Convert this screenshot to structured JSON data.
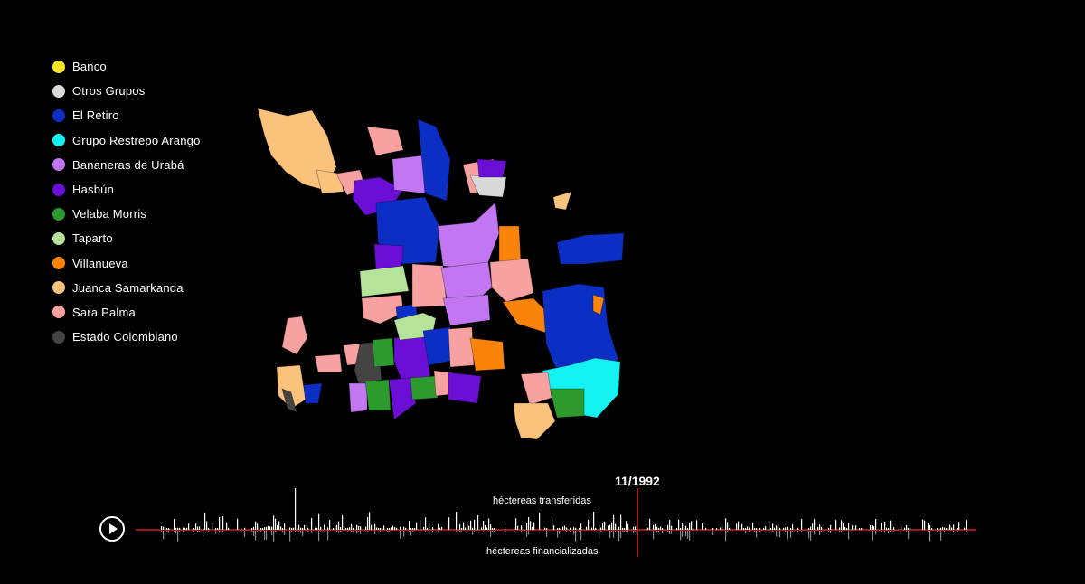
{
  "legend": [
    {
      "label": "Banco",
      "color": "#f7e627"
    },
    {
      "label": "Otros Grupos",
      "color": "#d9d9d9"
    },
    {
      "label": "El Retiro",
      "color": "#0b2fc4"
    },
    {
      "label": "Grupo Restrepo Arango",
      "color": "#14f1f1"
    },
    {
      "label": "Bananeras de Urabá",
      "color": "#c276f2"
    },
    {
      "label": "Hasbún",
      "color": "#6b0fd6"
    },
    {
      "label": "Velaba Morris",
      "color": "#2d9a2d"
    },
    {
      "label": "Taparto",
      "color": "#b6e39a"
    },
    {
      "label": "Villanueva",
      "color": "#f98409"
    },
    {
      "label": "Juanca Samarkanda",
      "color": "#fbc27c"
    },
    {
      "label": "Sara Palma",
      "color": "#f7a1a1"
    },
    {
      "label": "Estado Colombiano",
      "color": "#444444"
    }
  ],
  "timeline": {
    "date": "11/1992",
    "transferred_label": "héctereas transferidas",
    "financialized_label": "héctereas financializadas",
    "play_icon": "play-icon",
    "axis_color": "#d61f1f",
    "marker_color": "#d61f1f"
  }
}
